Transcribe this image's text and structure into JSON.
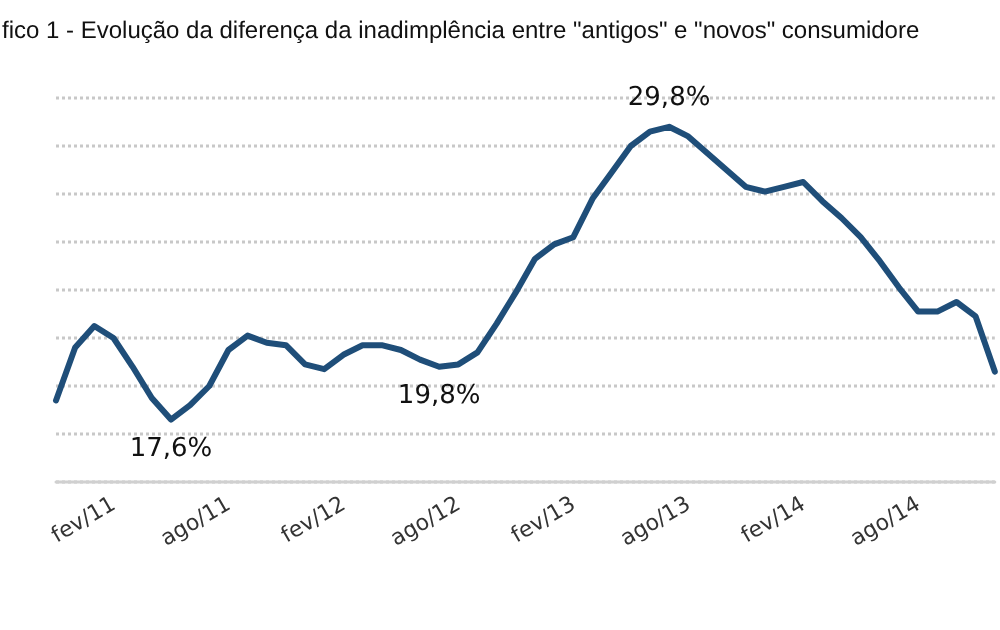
{
  "chart_data": {
    "type": "line",
    "title": "fico 1 - Evolução da diferença da inadimplência entre \"antigos\" e \"novos\" consumidore",
    "categories": [
      null,
      null,
      null,
      "fev/11",
      null,
      null,
      null,
      null,
      null,
      "ago/11",
      null,
      null,
      null,
      null,
      null,
      "fev/12",
      null,
      null,
      null,
      null,
      null,
      "ago/12",
      null,
      null,
      null,
      null,
      null,
      "fev/13",
      null,
      null,
      null,
      null,
      null,
      "ago/13",
      null,
      null,
      null,
      null,
      null,
      "fev/14",
      null,
      null,
      null,
      null,
      null,
      "ago/14",
      null,
      null,
      null,
      null
    ],
    "series": [
      {
        "color": "#1f4e79",
        "values": [
          18.4,
          20.6,
          21.5,
          21.0,
          19.8,
          18.5,
          17.6,
          18.2,
          19.0,
          20.5,
          21.1,
          20.8,
          20.7,
          19.9,
          19.7,
          20.3,
          20.7,
          20.7,
          20.5,
          20.1,
          19.8,
          19.9,
          20.4,
          21.6,
          22.9,
          24.3,
          24.9,
          25.2,
          26.8,
          27.9,
          29.0,
          29.6,
          29.8,
          29.4,
          28.7,
          28.0,
          27.3,
          27.1,
          27.3,
          27.5,
          26.7,
          26.0,
          25.2,
          24.2,
          23.1,
          22.1,
          22.1,
          22.5,
          21.9,
          19.6
        ],
        "value_labels": [
          null,
          null,
          null,
          null,
          null,
          null,
          "17,6%",
          null,
          null,
          null,
          null,
          null,
          null,
          null,
          null,
          null,
          null,
          null,
          null,
          null,
          "19,8%",
          null,
          null,
          null,
          null,
          null,
          null,
          null,
          null,
          null,
          null,
          null,
          "29,8%",
          null,
          null,
          null,
          null,
          null,
          null,
          null,
          null,
          null,
          null,
          null,
          null,
          null,
          null,
          null,
          null,
          null
        ]
      }
    ],
    "ylim": [
      15,
      31
    ],
    "yticks": [
      {
        "value": 15,
        "label": null
      },
      {
        "value": 17,
        "label": null
      },
      {
        "value": 19,
        "label": null
      },
      {
        "value": 21,
        "label": null
      },
      {
        "value": 23,
        "label": null
      },
      {
        "value": 25,
        "label": null
      },
      {
        "value": 27,
        "label": null
      },
      {
        "value": 29,
        "label": null
      },
      {
        "value": 31,
        "label": null
      }
    ],
    "grid": "y",
    "marker": "none",
    "line_style": "solid"
  }
}
